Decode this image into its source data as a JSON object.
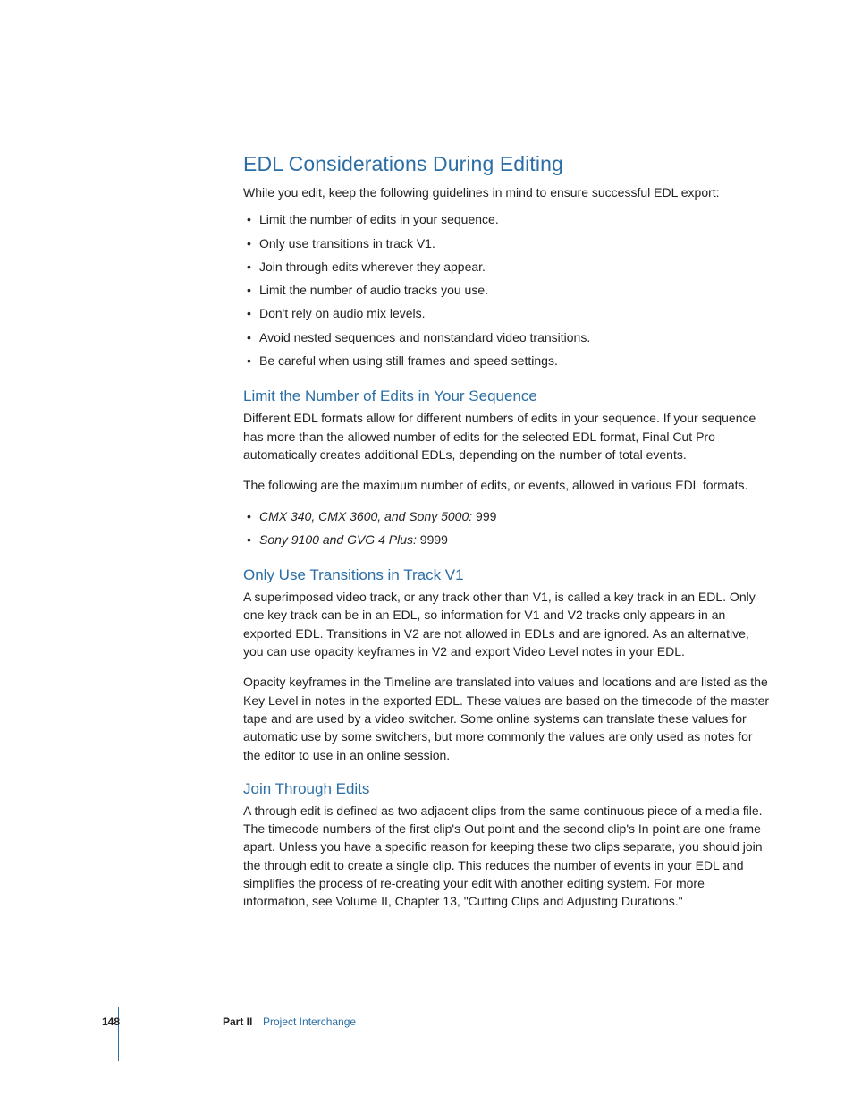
{
  "heading_main": "EDL Considerations During Editing",
  "intro": "While you edit, keep the following guidelines in mind to ensure successful EDL export:",
  "guidelines": [
    "Limit the number of edits in your sequence.",
    "Only use transitions in track V1.",
    "Join through edits wherever they appear.",
    "Limit the number of audio tracks you use.",
    "Don't rely on audio mix levels.",
    "Avoid nested sequences and nonstandard video transitions.",
    "Be careful when using still frames and speed settings."
  ],
  "section1": {
    "heading": "Limit the Number of Edits in Your Sequence",
    "p1": "Different EDL formats allow for different numbers of edits in your sequence. If your sequence has more than the allowed number of edits for the selected EDL format, Final Cut Pro automatically creates additional EDLs, depending on the number of total events.",
    "p2": "The following are the maximum number of edits, or events, allowed in various EDL formats.",
    "items": [
      {
        "label": "CMX 340, CMX 3600, and Sony 5000:  ",
        "value": "999"
      },
      {
        "label": "Sony 9100 and GVG 4 Plus:  ",
        "value": "9999"
      }
    ]
  },
  "section2": {
    "heading": "Only Use Transitions in Track V1",
    "p1": "A superimposed video track, or any track other than V1, is called a key track in an EDL. Only one key track can be in an EDL, so information for V1 and V2 tracks only appears in an exported EDL. Transitions in V2 are not allowed in EDLs and are ignored. As an alternative, you can use opacity keyframes in V2 and export Video Level notes in your EDL.",
    "p2": "Opacity keyframes in the Timeline are translated into values and locations and are listed as the Key Level in notes in the exported EDL. These values are based on the timecode of the master tape and are used by a video switcher. Some online systems can translate these values for automatic use by some switchers, but more commonly the values are only used as notes for the editor to use in an online session."
  },
  "section3": {
    "heading": "Join Through Edits",
    "p1": "A through edit is defined as two adjacent clips from the same continuous piece of a media file. The timecode numbers of the first clip's Out point and the second clip's In point are one frame apart. Unless you have a specific reason for keeping these two clips separate, you should join the through edit to create a single clip. This reduces the number of events in your EDL and simplifies the process of re-creating your edit with another editing system. For more information, see Volume II, Chapter 13, \"Cutting Clips and Adjusting Durations.\""
  },
  "footer": {
    "page": "148",
    "part": "Part II",
    "section": "Project Interchange"
  },
  "colors": {
    "heading": "#2a6ea5",
    "body": "#222222",
    "background": "#ffffff"
  }
}
